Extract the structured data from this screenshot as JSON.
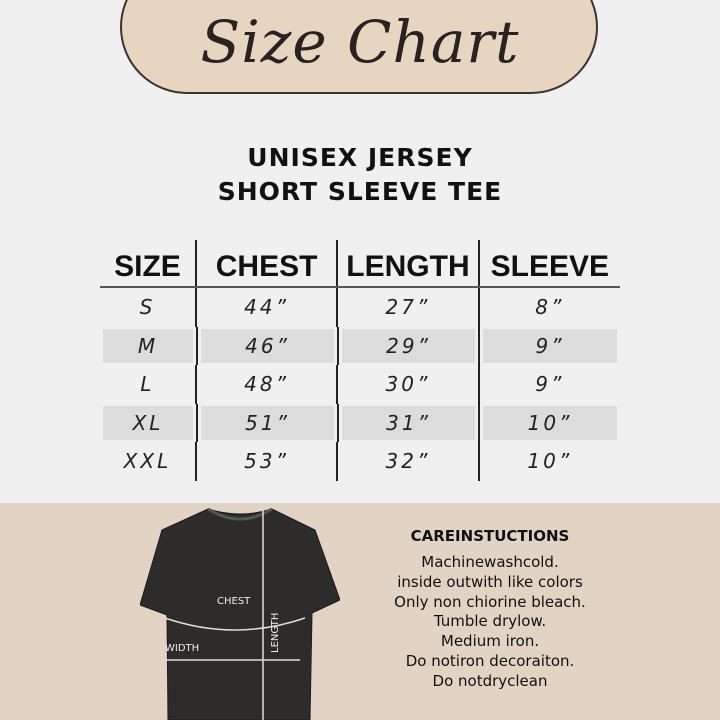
{
  "banner": {
    "title": "Size Chart"
  },
  "product": {
    "line1": "UNISEX JERSEY",
    "line2": "SHORT SLEEVE TEE"
  },
  "table": {
    "headers": [
      "SIZE",
      "CHEST",
      "LENGTH",
      "SLEEVE"
    ],
    "rows": [
      [
        "S",
        "44”",
        "27”",
        "8”"
      ],
      [
        "M",
        "46”",
        "29”",
        "9”"
      ],
      [
        "L",
        "48”",
        "30”",
        "9”"
      ],
      [
        "XL",
        "51”",
        "31”",
        "10”"
      ],
      [
        "XXL",
        "53”",
        "32”",
        "10”"
      ]
    ]
  },
  "diagram": {
    "chest": "CHEST",
    "width": "WIDTH",
    "length": "LENGTH"
  },
  "care": {
    "title": "CAREINSTUCTIONS",
    "lines": [
      "Machinewashcold.",
      "inside outwith like colors",
      "Only non chiorine bleach.",
      "Tumble drylow.",
      "Medium iron.",
      "Do notiron decoraiton.",
      "Do notdryclean"
    ]
  },
  "colors": {
    "background": "#f0f0f0",
    "beige": "#e2d4c4",
    "shirt": "#2e2c2b"
  }
}
